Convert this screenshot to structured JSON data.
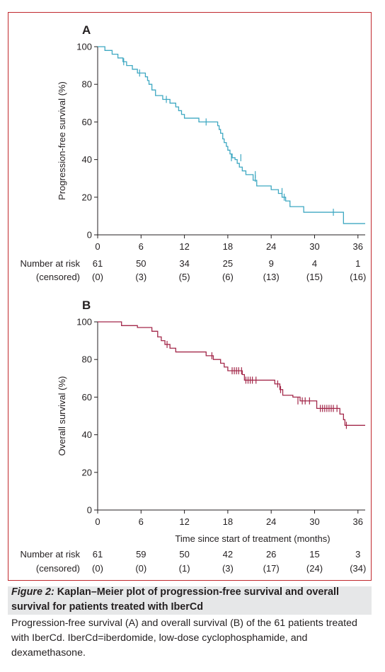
{
  "chart_data": [
    {
      "type": "line",
      "panel": "A",
      "step": true,
      "xlabel": "",
      "ylabel": "Progression-free survival (%)",
      "xlim": [
        0,
        37
      ],
      "ylim": [
        0,
        100
      ],
      "xticks": [
        0,
        6,
        12,
        18,
        24,
        30,
        36
      ],
      "yticks": [
        0,
        20,
        40,
        60,
        80,
        100
      ],
      "color": "#3ea8c2",
      "series": [
        {
          "steps": [
            [
              0,
              100
            ],
            [
              1,
              98
            ],
            [
              2,
              96
            ],
            [
              2.8,
              94
            ],
            [
              3.5,
              92
            ],
            [
              4,
              90
            ],
            [
              4.8,
              88
            ],
            [
              5.5,
              86
            ],
            [
              6.6,
              84
            ],
            [
              6.9,
              82
            ],
            [
              7.1,
              80
            ],
            [
              7.5,
              77
            ],
            [
              8,
              74
            ],
            [
              9,
              72
            ],
            [
              10,
              70
            ],
            [
              10.8,
              68
            ],
            [
              11.2,
              66
            ],
            [
              11.6,
              64
            ],
            [
              12,
              62
            ],
            [
              14,
              60
            ],
            [
              16.6,
              58
            ],
            [
              16.8,
              56
            ],
            [
              17,
              54
            ],
            [
              17.3,
              51
            ],
            [
              17.5,
              49
            ],
            [
              17.8,
              47
            ],
            [
              18,
              45
            ],
            [
              18.3,
              43
            ],
            [
              18.6,
              41
            ],
            [
              19,
              40
            ],
            [
              19.3,
              38
            ],
            [
              19.6,
              36
            ],
            [
              20,
              34
            ],
            [
              20.5,
              32
            ],
            [
              21.5,
              29
            ],
            [
              22,
              26
            ],
            [
              23,
              26
            ],
            [
              24,
              24
            ],
            [
              25,
              22
            ],
            [
              25.5,
              20
            ],
            [
              26,
              18
            ],
            [
              26.6,
              15
            ],
            [
              28.5,
              12
            ],
            [
              34,
              6
            ],
            [
              37,
              6
            ]
          ],
          "censored": [
            [
              3.6,
              92
            ],
            [
              5.8,
              86
            ],
            [
              9.5,
              72
            ],
            [
              15,
              60
            ],
            [
              18.5,
              41
            ],
            [
              19.8,
              41
            ],
            [
              21.8,
              32
            ],
            [
              21.8,
              30
            ],
            [
              25.5,
              23
            ],
            [
              25.8,
              20
            ],
            [
              32.6,
              12
            ]
          ]
        }
      ],
      "risk_table": {
        "times": [
          0,
          6,
          12,
          18,
          24,
          30,
          36
        ],
        "number_at_risk": [
          "61",
          "50",
          "34",
          "25",
          "9",
          "4",
          "1"
        ],
        "censored": [
          "(0)",
          "(3)",
          "(5)",
          "(6)",
          "(13)",
          "(15)",
          "(16)"
        ]
      }
    },
    {
      "type": "line",
      "panel": "B",
      "step": true,
      "xlabel": "Time since start of treatment (months)",
      "ylabel": "Overall survival (%)",
      "xlim": [
        0,
        37
      ],
      "ylim": [
        0,
        100
      ],
      "xticks": [
        0,
        6,
        12,
        18,
        24,
        30,
        36
      ],
      "yticks": [
        0,
        20,
        40,
        60,
        80,
        100
      ],
      "color": "#a3284a",
      "series": [
        {
          "steps": [
            [
              0,
              100
            ],
            [
              3.3,
              98
            ],
            [
              5.5,
              97
            ],
            [
              7.5,
              95
            ],
            [
              8.3,
              92
            ],
            [
              8.8,
              90
            ],
            [
              9.3,
              88
            ],
            [
              10,
              86
            ],
            [
              10.8,
              84
            ],
            [
              15,
              82
            ],
            [
              16,
              80
            ],
            [
              17,
              78
            ],
            [
              17.5,
              76
            ],
            [
              18,
              74
            ],
            [
              20,
              72
            ],
            [
              20.3,
              69
            ],
            [
              24.5,
              67
            ],
            [
              25.2,
              64
            ],
            [
              25.6,
              61
            ],
            [
              27,
              60
            ],
            [
              28,
              58
            ],
            [
              30.3,
              54
            ],
            [
              33.5,
              51
            ],
            [
              34,
              48
            ],
            [
              34.2,
              45
            ],
            [
              37,
              45
            ]
          ],
          "censored": [
            [
              9.6,
              88
            ],
            [
              15.8,
              82
            ],
            [
              18.6,
              74
            ],
            [
              18.9,
              74
            ],
            [
              19.2,
              74
            ],
            [
              19.5,
              74
            ],
            [
              19.9,
              74
            ],
            [
              20.5,
              69
            ],
            [
              20.8,
              69
            ],
            [
              21.1,
              69
            ],
            [
              21.4,
              69
            ],
            [
              21.9,
              69
            ],
            [
              24.9,
              67
            ],
            [
              25.3,
              64
            ],
            [
              27.7,
              58
            ],
            [
              28.3,
              58
            ],
            [
              28.7,
              58
            ],
            [
              29.3,
              58
            ],
            [
              30.8,
              54
            ],
            [
              31.1,
              54
            ],
            [
              31.4,
              54
            ],
            [
              31.7,
              54
            ],
            [
              32,
              54
            ],
            [
              32.3,
              54
            ],
            [
              32.6,
              54
            ],
            [
              33.1,
              54
            ],
            [
              34.4,
              45
            ]
          ]
        }
      ],
      "risk_table": {
        "times": [
          0,
          6,
          12,
          18,
          24,
          30,
          36
        ],
        "number_at_risk": [
          "61",
          "59",
          "50",
          "42",
          "26",
          "15",
          "3"
        ],
        "censored": [
          "(0)",
          "(0)",
          "(1)",
          "(3)",
          "(17)",
          "(24)",
          "(34)"
        ]
      }
    }
  ],
  "risk_labels": {
    "number_at_risk": "Number at risk",
    "censored": "(censored)"
  },
  "caption": {
    "figure_label": "Figure 2:",
    "title": "Kaplan–Meier plot of progression-free survival and overall survival for patients treated with IberCd",
    "body": "Progression-free survival (A) and overall survival (B) of the 61 patients treated with IberCd. IberCd=iberdomide, low-dose cyclophosphamide, and dexamethasone."
  },
  "colors": {
    "frame": "#c0282d",
    "caption_background": "#e6e7e8"
  }
}
